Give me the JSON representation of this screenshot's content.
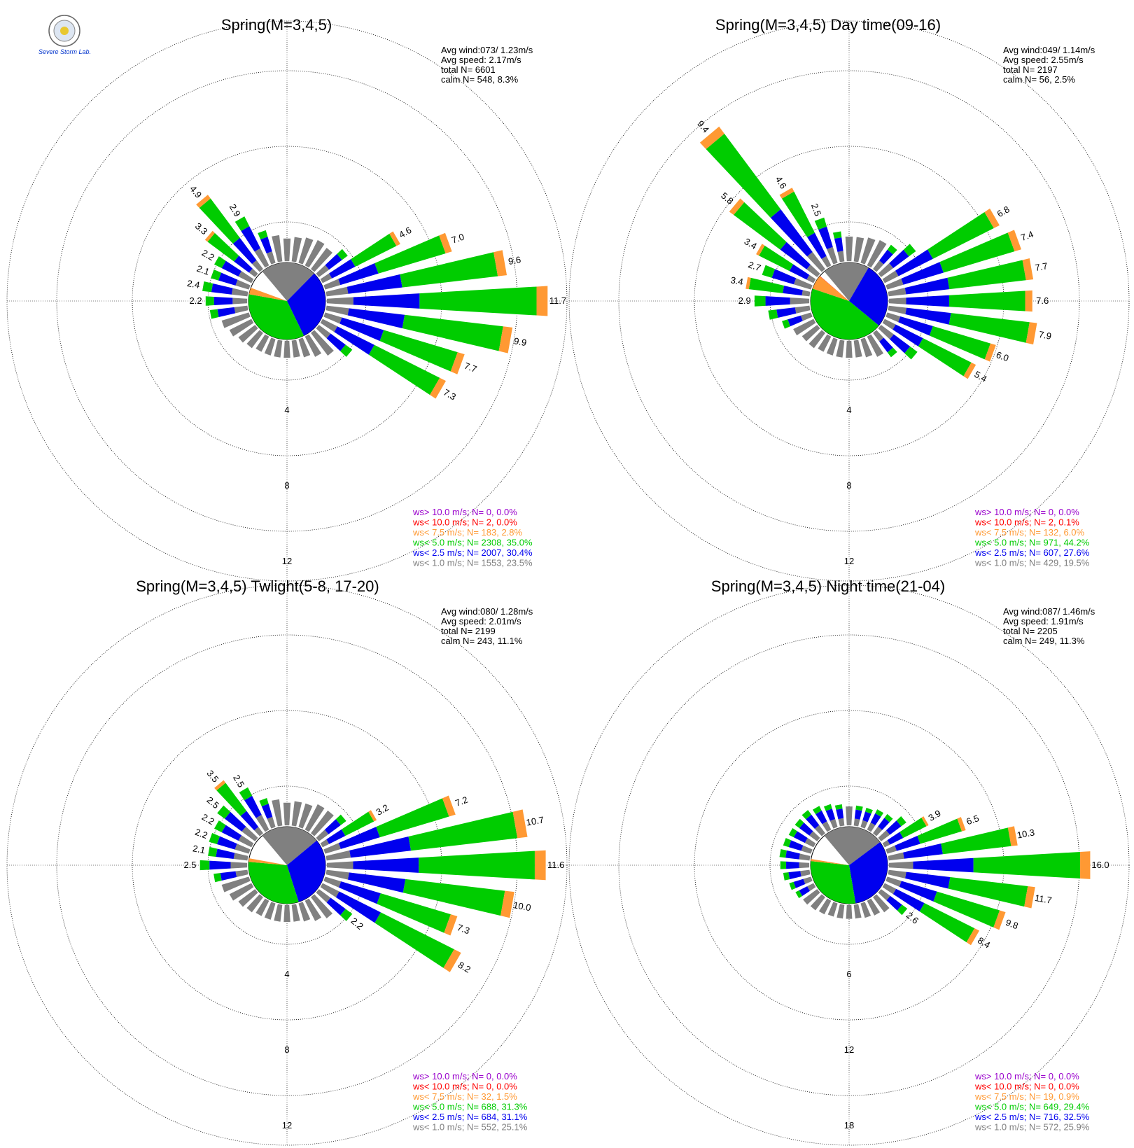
{
  "colors": {
    "ws_gt_10": "#9900cc",
    "ws_lt_10": "#ff0000",
    "ws_lt_7_5": "#ff9933",
    "ws_lt_5_0": "#00cc00",
    "ws_lt_2_5": "#0000ee",
    "ws_lt_1_0": "#808080"
  },
  "logo": {
    "text": "Severe Storm Lab."
  },
  "chart_data": [
    {
      "type": "windrose",
      "title": "Spring(M=3,4,5)",
      "ring_labels": [
        "4",
        "8",
        "12"
      ],
      "rmax": 16,
      "stats": {
        "avg_wind": "Avg wind:073/ 1.23m/s",
        "avg_speed": "Avg speed: 2.17m/s",
        "total": "total N=        6601",
        "calm": "calm N=    548,   8.3%"
      },
      "legend": [
        "ws> 10.0 m/s; N=      0,  0.0%",
        "ws< 10.0 m/s; N=      2,  0.0%",
        "ws<  7.5 m/s; N=   183,  2.8%",
        "ws<  5.0 m/s; N=  2308, 35.0%",
        "ws<  2.5 m/s; N=  2007, 30.4%",
        "ws<  1.0 m/s; N=  1553, 23.5%"
      ],
      "pie": [
        23.5,
        30.4,
        35.0,
        2.8,
        0.0,
        0.0
      ],
      "petals": [
        {
          "dir": 0,
          "v": 1.2
        },
        {
          "dir": 10,
          "v": 1.3
        },
        {
          "dir": 20,
          "v": 1.4
        },
        {
          "dir": 30,
          "v": 1.5
        },
        {
          "dir": 40,
          "v": 1.4
        },
        {
          "dir": 50,
          "v": 1.9
        },
        {
          "dir": 60,
          "v": 4.6,
          "label": "4.6"
        },
        {
          "dir": 70,
          "v": 7.0,
          "label": "7.0"
        },
        {
          "dir": 80,
          "v": 9.6,
          "label": "9.6"
        },
        {
          "dir": 90,
          "v": 11.7,
          "label": "11.7"
        },
        {
          "dir": 100,
          "v": 9.9,
          "label": "9.9"
        },
        {
          "dir": 110,
          "v": 7.7,
          "label": "7.7"
        },
        {
          "dir": 120,
          "v": 7.3,
          "label": "7.3"
        },
        {
          "dir": 130,
          "v": 2.2
        },
        {
          "dir": 140,
          "v": 1.5
        },
        {
          "dir": 150,
          "v": 1.2
        },
        {
          "dir": 160,
          "v": 1.0
        },
        {
          "dir": 170,
          "v": 0.9
        },
        {
          "dir": 180,
          "v": 0.9
        },
        {
          "dir": 190,
          "v": 0.9
        },
        {
          "dir": 200,
          "v": 0.9
        },
        {
          "dir": 210,
          "v": 0.9
        },
        {
          "dir": 220,
          "v": 1.0
        },
        {
          "dir": 230,
          "v": 1.1
        },
        {
          "dir": 240,
          "v": 1.3
        },
        {
          "dir": 250,
          "v": 1.5
        },
        {
          "dir": 260,
          "v": 2.0
        },
        {
          "dir": 270,
          "v": 2.2,
          "label": "2.2"
        },
        {
          "dir": 280,
          "v": 2.4,
          "label": "2.4"
        },
        {
          "dir": 290,
          "v": 2.1,
          "label": "2.1"
        },
        {
          "dir": 300,
          "v": 2.2,
          "label": "2.2"
        },
        {
          "dir": 310,
          "v": 3.3,
          "label": "3.3"
        },
        {
          "dir": 320,
          "v": 4.9,
          "label": "4.9"
        },
        {
          "dir": 330,
          "v": 2.9,
          "label": "2.9"
        },
        {
          "dir": 340,
          "v": 1.8
        },
        {
          "dir": 350,
          "v": 1.4
        }
      ]
    },
    {
      "type": "windrose",
      "title": "Spring(M=3,4,5) Day time(09-16)",
      "ring_labels": [
        "4",
        "8",
        "12"
      ],
      "rmax": 16,
      "stats": {
        "avg_wind": "Avg wind:049/ 1.14m/s",
        "avg_speed": "Avg speed: 2.55m/s",
        "total": "total N=        2197",
        "calm": "calm N=     56,   2.5%"
      },
      "legend": [
        "ws> 10.0 m/s; N=      0,  0.0%",
        "ws< 10.0 m/s; N=      2,  0.1%",
        "ws<  7.5 m/s; N=   132,  6.0%",
        "ws<  5.0 m/s; N=   971, 44.2%",
        "ws<  2.5 m/s; N=   607, 27.6%",
        "ws<  1.0 m/s; N=   429, 19.5%"
      ],
      "pie": [
        19.5,
        27.6,
        44.2,
        6.0,
        0.1,
        0.0
      ],
      "petals": [
        {
          "dir": 0,
          "v": 1.3
        },
        {
          "dir": 10,
          "v": 1.3
        },
        {
          "dir": 20,
          "v": 1.4
        },
        {
          "dir": 30,
          "v": 1.5
        },
        {
          "dir": 40,
          "v": 1.6
        },
        {
          "dir": 50,
          "v": 2.3
        },
        {
          "dir": 60,
          "v": 6.8,
          "label": "6.8"
        },
        {
          "dir": 70,
          "v": 7.4,
          "label": "7.4"
        },
        {
          "dir": 80,
          "v": 7.7,
          "label": "7.7"
        },
        {
          "dir": 90,
          "v": 7.6,
          "label": "7.6"
        },
        {
          "dir": 100,
          "v": 7.9,
          "label": "7.9"
        },
        {
          "dir": 110,
          "v": 6.0,
          "label": "6.0"
        },
        {
          "dir": 120,
          "v": 5.4,
          "label": "5.4"
        },
        {
          "dir": 130,
          "v": 2.4
        },
        {
          "dir": 140,
          "v": 1.6
        },
        {
          "dir": 150,
          "v": 1.2
        },
        {
          "dir": 160,
          "v": 1.0
        },
        {
          "dir": 170,
          "v": 0.9
        },
        {
          "dir": 180,
          "v": 0.9
        },
        {
          "dir": 190,
          "v": 0.9
        },
        {
          "dir": 200,
          "v": 0.9
        },
        {
          "dir": 210,
          "v": 0.9
        },
        {
          "dir": 220,
          "v": 1.0
        },
        {
          "dir": 230,
          "v": 1.0
        },
        {
          "dir": 240,
          "v": 1.2
        },
        {
          "dir": 250,
          "v": 1.6
        },
        {
          "dir": 260,
          "v": 2.2
        },
        {
          "dir": 270,
          "v": 2.9,
          "label": "2.9"
        },
        {
          "dir": 280,
          "v": 3.4,
          "label": "3.4"
        },
        {
          "dir": 290,
          "v": 2.7,
          "label": "2.7"
        },
        {
          "dir": 300,
          "v": 3.4,
          "label": "3.4"
        },
        {
          "dir": 310,
          "v": 5.8,
          "label": "5.8"
        },
        {
          "dir": 320,
          "v": 9.4,
          "label": "9.4"
        },
        {
          "dir": 330,
          "v": 4.6,
          "label": "4.6"
        },
        {
          "dir": 340,
          "v": 2.5,
          "label": "2.5"
        },
        {
          "dir": 350,
          "v": 1.6
        }
      ]
    },
    {
      "type": "windrose",
      "title": "Spring(M=3,4,5) Twlight(5-8, 17-20)",
      "ring_labels": [
        "4",
        "8",
        "12"
      ],
      "rmax": 16,
      "stats": {
        "avg_wind": "Avg wind:080/ 1.28m/s",
        "avg_speed": "Avg speed: 2.01m/s",
        "total": "total N=        2199",
        "calm": "calm N=    243,  11.1%"
      },
      "legend": [
        "ws> 10.0 m/s; N=      0,  0.0%",
        "ws< 10.0 m/s; N=      0,  0.0%",
        "ws<  7.5 m/s; N=     32,  1.5%",
        "ws<  5.0 m/s; N=   688, 31.3%",
        "ws<  2.5 m/s; N=   684, 31.1%",
        "ws<  1.0 m/s; N=   552, 25.1%"
      ],
      "pie": [
        25.1,
        31.1,
        31.3,
        1.5,
        0.0,
        0.0
      ],
      "petals": [
        {
          "dir": 0,
          "v": 1.2
        },
        {
          "dir": 10,
          "v": 1.3
        },
        {
          "dir": 20,
          "v": 1.3
        },
        {
          "dir": 30,
          "v": 1.5
        },
        {
          "dir": 40,
          "v": 1.5
        },
        {
          "dir": 50,
          "v": 1.8
        },
        {
          "dir": 60,
          "v": 3.2,
          "label": "3.2"
        },
        {
          "dir": 70,
          "v": 7.2,
          "label": "7.2"
        },
        {
          "dir": 80,
          "v": 10.7,
          "label": "10.7"
        },
        {
          "dir": 90,
          "v": 11.6,
          "label": "11.6"
        },
        {
          "dir": 100,
          "v": 10.0,
          "label": "10.0"
        },
        {
          "dir": 110,
          "v": 7.3,
          "label": "7.3"
        },
        {
          "dir": 120,
          "v": 8.2,
          "label": "8.2"
        },
        {
          "dir": 130,
          "v": 2.2,
          "label": "2.2"
        },
        {
          "dir": 140,
          "v": 1.4
        },
        {
          "dir": 150,
          "v": 1.2
        },
        {
          "dir": 160,
          "v": 1.0
        },
        {
          "dir": 170,
          "v": 0.9
        },
        {
          "dir": 180,
          "v": 0.9
        },
        {
          "dir": 190,
          "v": 0.9
        },
        {
          "dir": 200,
          "v": 0.9
        },
        {
          "dir": 210,
          "v": 0.9
        },
        {
          "dir": 220,
          "v": 1.0
        },
        {
          "dir": 230,
          "v": 1.1
        },
        {
          "dir": 240,
          "v": 1.3
        },
        {
          "dir": 250,
          "v": 1.5
        },
        {
          "dir": 260,
          "v": 1.8
        },
        {
          "dir": 270,
          "v": 2.5,
          "label": "2.5"
        },
        {
          "dir": 280,
          "v": 2.1,
          "label": "2.1"
        },
        {
          "dir": 290,
          "v": 2.2,
          "label": "2.2"
        },
        {
          "dir": 300,
          "v": 2.2,
          "label": "2.2"
        },
        {
          "dir": 310,
          "v": 2.5,
          "label": "2.5"
        },
        {
          "dir": 320,
          "v": 3.5,
          "label": "3.5"
        },
        {
          "dir": 330,
          "v": 2.5,
          "label": "2.5"
        },
        {
          "dir": 340,
          "v": 1.6
        },
        {
          "dir": 350,
          "v": 1.4
        }
      ]
    },
    {
      "type": "windrose",
      "title": "Spring(M=3,4,5) Night time(21-04)",
      "ring_labels": [
        "6",
        "12",
        "18"
      ],
      "rmax": 24,
      "stats": {
        "avg_wind": "Avg wind:087/ 1.46m/s",
        "avg_speed": "Avg speed: 1.91m/s",
        "total": "total N=        2205",
        "calm": "calm N=    249,  11.3%"
      },
      "legend": [
        "ws> 10.0 m/s; N=      0,  0.0%",
        "ws< 10.0 m/s; N=      0,  0.0%",
        "ws<  7.5 m/s; N=     19,  0.9%",
        "ws<  5.0 m/s; N=   649, 29.4%",
        "ws<  2.5 m/s; N=   716, 32.5%",
        "ws<  1.0 m/s; N=   572, 25.9%"
      ],
      "pie": [
        25.9,
        32.5,
        29.4,
        0.9,
        0.0,
        0.0
      ],
      "petals": [
        {
          "dir": 0,
          "v": 1.5
        },
        {
          "dir": 10,
          "v": 1.6
        },
        {
          "dir": 20,
          "v": 1.6
        },
        {
          "dir": 30,
          "v": 1.8
        },
        {
          "dir": 40,
          "v": 1.9
        },
        {
          "dir": 50,
          "v": 2.5
        },
        {
          "dir": 60,
          "v": 3.9,
          "label": "3.9"
        },
        {
          "dir": 70,
          "v": 6.5,
          "label": "6.5"
        },
        {
          "dir": 80,
          "v": 10.3,
          "label": "10.3"
        },
        {
          "dir": 90,
          "v": 16.0,
          "label": "16.0"
        },
        {
          "dir": 100,
          "v": 11.7,
          "label": "11.7"
        },
        {
          "dir": 110,
          "v": 9.8,
          "label": "9.8"
        },
        {
          "dir": 120,
          "v": 8.4,
          "label": "8.4"
        },
        {
          "dir": 130,
          "v": 2.6,
          "label": "2.6"
        },
        {
          "dir": 140,
          "v": 1.5
        },
        {
          "dir": 150,
          "v": 1.3
        },
        {
          "dir": 160,
          "v": 1.2
        },
        {
          "dir": 170,
          "v": 1.1
        },
        {
          "dir": 180,
          "v": 1.1
        },
        {
          "dir": 190,
          "v": 1.1
        },
        {
          "dir": 200,
          "v": 1.1
        },
        {
          "dir": 210,
          "v": 1.2
        },
        {
          "dir": 220,
          "v": 1.3
        },
        {
          "dir": 230,
          "v": 1.4
        },
        {
          "dir": 240,
          "v": 1.6
        },
        {
          "dir": 250,
          "v": 1.8
        },
        {
          "dir": 260,
          "v": 2.1
        },
        {
          "dir": 270,
          "v": 2.3
        },
        {
          "dir": 280,
          "v": 2.4
        },
        {
          "dir": 290,
          "v": 2.3
        },
        {
          "dir": 300,
          "v": 2.2
        },
        {
          "dir": 310,
          "v": 2.2
        },
        {
          "dir": 320,
          "v": 2.3
        },
        {
          "dir": 330,
          "v": 2.1
        },
        {
          "dir": 340,
          "v": 1.9
        },
        {
          "dir": 350,
          "v": 1.7
        }
      ]
    }
  ]
}
